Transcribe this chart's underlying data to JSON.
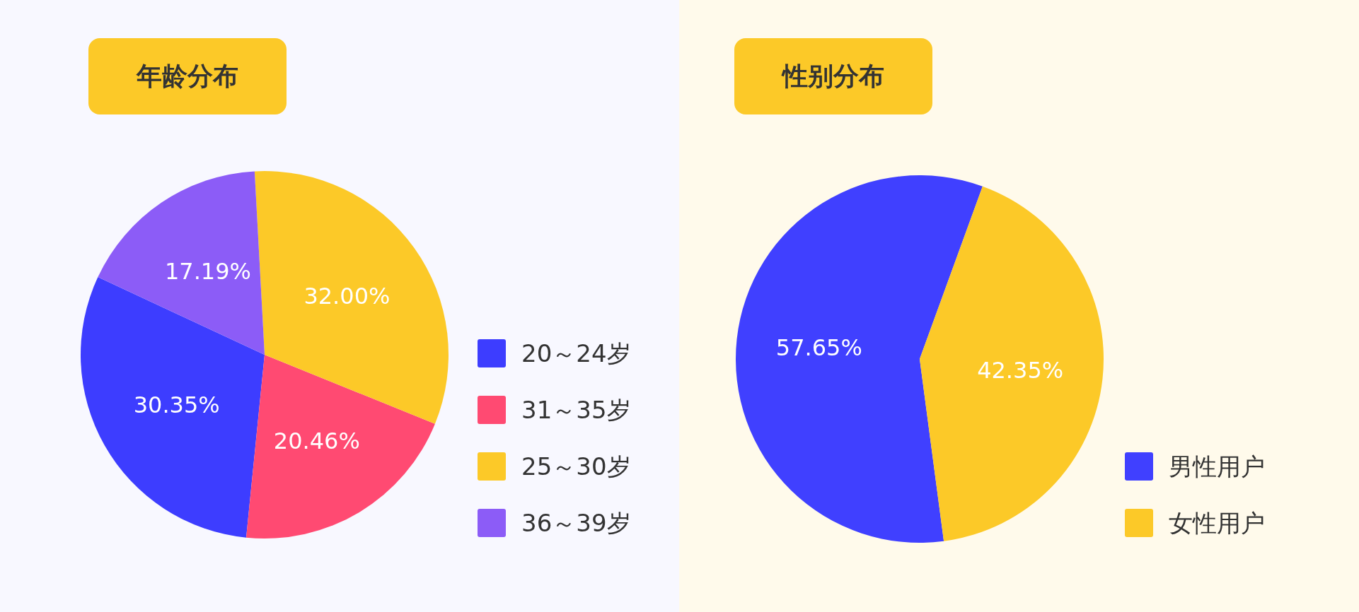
{
  "chart_data": [
    {
      "type": "pie",
      "title": "年龄分布",
      "categories": [
        "20～24岁",
        "31～35岁",
        "25～30岁",
        "36～39岁"
      ],
      "values": [
        30.35,
        20.46,
        32.0,
        17.19
      ],
      "value_labels": [
        "30.35%",
        "20.46%",
        "32.00%",
        "17.19%"
      ],
      "colors": [
        "#3d3dff",
        "#ff4a72",
        "#fcc928",
        "#8c5cf7"
      ],
      "legend": "right"
    },
    {
      "type": "pie",
      "title": "性别分布",
      "categories": [
        "男性用户",
        "女性用户"
      ],
      "values": [
        57.65,
        42.35
      ],
      "value_labels": [
        "57.65%",
        "42.35%"
      ],
      "colors": [
        "#4040ff",
        "#fcc928"
      ],
      "legend": "bottom right"
    }
  ]
}
